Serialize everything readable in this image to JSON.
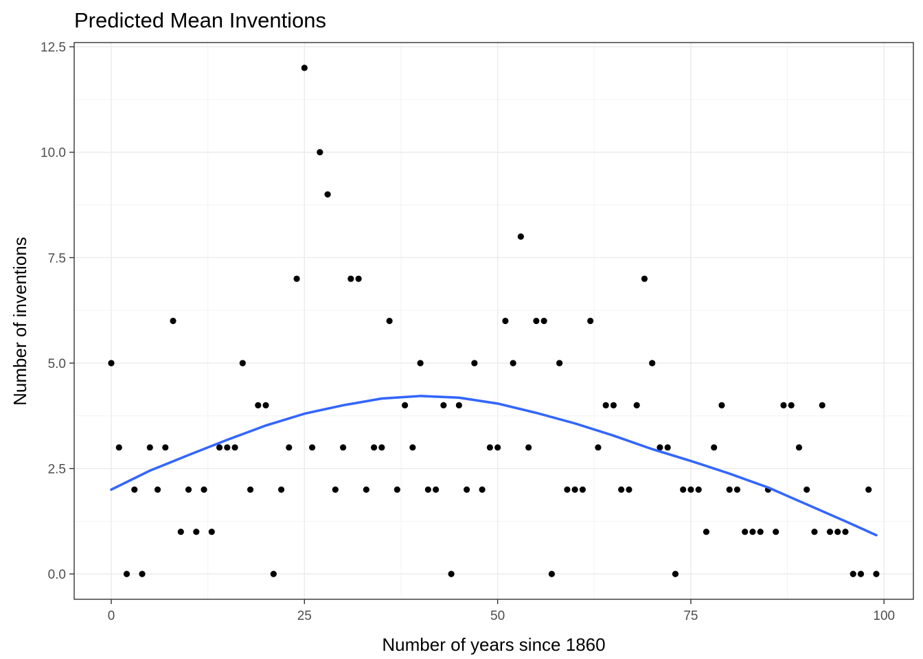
{
  "colors": {
    "points": "#000000",
    "trend": "#3366ff"
  },
  "chart_data": {
    "type": "scatter",
    "title": "Predicted Mean Inventions",
    "xlabel": "Number of years since 1860",
    "ylabel": "Number of inventions",
    "xlim": [
      -4.8,
      103.8
    ],
    "ylim": [
      -0.6,
      12.6
    ],
    "x_ticks": [
      0,
      25,
      50,
      75,
      100
    ],
    "x_tick_labels": [
      "0",
      "25",
      "50",
      "75",
      "100"
    ],
    "y_ticks": [
      0,
      2.5,
      5,
      7.5,
      10,
      12.5
    ],
    "y_tick_labels": [
      "0.0",
      "2.5",
      "5.0",
      "7.5",
      "10.0",
      "12.5"
    ],
    "grid": true,
    "legend": "none",
    "series": [
      {
        "type": "scatter",
        "x": [
          0,
          1,
          2,
          3,
          4,
          5,
          6,
          7,
          8,
          9,
          10,
          11,
          12,
          13,
          14,
          15,
          16,
          17,
          18,
          19,
          20,
          21,
          22,
          23,
          24,
          25,
          26,
          27,
          28,
          29,
          30,
          31,
          32,
          33,
          34,
          35,
          36,
          37,
          38,
          39,
          40,
          41,
          42,
          43,
          44,
          45,
          46,
          47,
          48,
          49,
          50,
          51,
          52,
          53,
          54,
          55,
          56,
          57,
          58,
          59,
          60,
          61,
          62,
          63,
          64,
          65,
          66,
          67,
          68,
          69,
          70,
          71,
          72,
          73,
          74,
          75,
          76,
          77,
          78,
          79,
          80,
          81,
          82,
          83,
          84,
          85,
          86,
          87,
          88,
          89,
          90,
          91,
          92,
          93,
          94,
          95,
          96,
          97,
          98,
          99
        ],
        "y": [
          5,
          3,
          0,
          2,
          0,
          3,
          2,
          3,
          6,
          1,
          2,
          1,
          2,
          1,
          3,
          3,
          3,
          5,
          2,
          4,
          4,
          0,
          2,
          3,
          7,
          12,
          3,
          10,
          9,
          2,
          3,
          7,
          7,
          2,
          3,
          3,
          6,
          2,
          4,
          3,
          5,
          2,
          2,
          4,
          0,
          4,
          2,
          5,
          2,
          3,
          3,
          6,
          5,
          8,
          3,
          6,
          6,
          0,
          5,
          2,
          2,
          2,
          6,
          3,
          4,
          4,
          2,
          2,
          4,
          7,
          5,
          3,
          3,
          0,
          2,
          2,
          2,
          1,
          3,
          4,
          2,
          2,
          1,
          1,
          1,
          2,
          1,
          4,
          4,
          3,
          2,
          1,
          4,
          1,
          1,
          1,
          0,
          0,
          2,
          0
        ]
      },
      {
        "type": "line",
        "x": [
          0,
          5,
          10,
          15,
          20,
          25,
          30,
          35,
          40,
          45,
          50,
          55,
          60,
          65,
          70,
          75,
          80,
          85,
          90,
          95,
          99
        ],
        "y": [
          2.0,
          2.45,
          2.82,
          3.18,
          3.52,
          3.8,
          4.0,
          4.16,
          4.22,
          4.18,
          4.04,
          3.82,
          3.57,
          3.28,
          2.96,
          2.68,
          2.38,
          2.05,
          1.65,
          1.25,
          0.92
        ]
      }
    ]
  }
}
